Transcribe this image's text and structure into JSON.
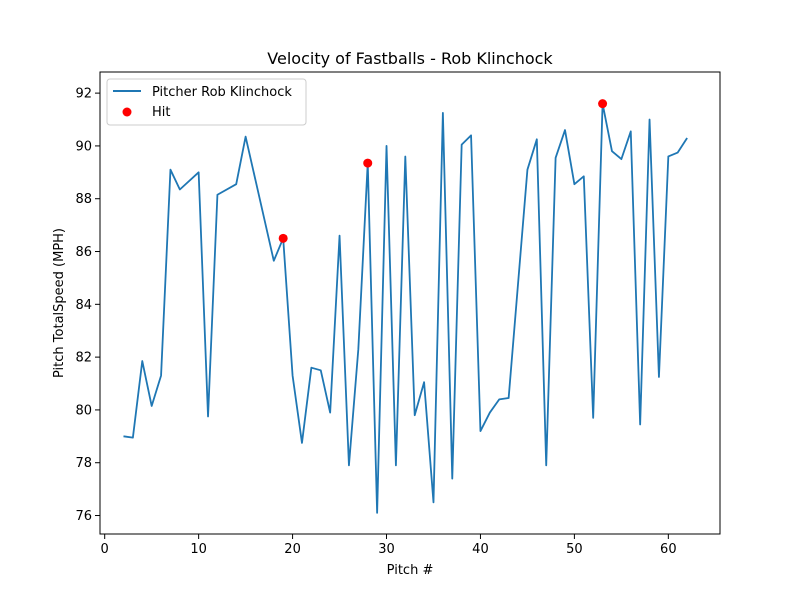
{
  "chart_data": {
    "type": "line",
    "title": "Velocity of Fastballs - Rob Klinchock",
    "xlabel": "Pitch #",
    "ylabel": "Pitch TotalSpeed (MPH)",
    "xlim": [
      -0.5,
      65.5
    ],
    "ylim": [
      75.3,
      92.8
    ],
    "xticks": [
      0,
      10,
      20,
      30,
      40,
      50,
      60
    ],
    "yticks": [
      76,
      78,
      80,
      82,
      84,
      86,
      88,
      90,
      92
    ],
    "grid": false,
    "legend_position": "upper-left",
    "series": [
      {
        "name": "Pitcher Rob Klinchock",
        "color": "#1f77b4",
        "x": [
          2,
          3,
          4,
          5,
          6,
          7,
          8,
          10,
          11,
          12,
          14,
          15,
          18,
          19,
          20,
          21,
          22,
          23,
          24,
          25,
          26,
          27,
          28,
          29,
          30,
          31,
          32,
          33,
          34,
          35,
          36,
          37,
          38,
          39,
          40,
          41,
          42,
          43,
          45,
          46,
          47,
          48,
          49,
          50,
          51,
          52,
          53,
          54,
          55,
          56,
          57,
          58,
          59,
          60,
          61,
          62
        ],
        "y": [
          79.0,
          78.95,
          81.85,
          80.15,
          81.3,
          89.1,
          88.35,
          89.0,
          79.75,
          88.15,
          88.55,
          90.35,
          85.65,
          86.5,
          81.3,
          78.75,
          81.6,
          81.5,
          79.9,
          86.6,
          77.9,
          82.3,
          89.35,
          76.1,
          90.0,
          77.9,
          89.6,
          79.8,
          81.05,
          76.5,
          91.25,
          77.4,
          90.05,
          90.4,
          79.2,
          79.9,
          80.4,
          80.45,
          89.1,
          90.25,
          77.9,
          89.55,
          90.6,
          88.55,
          88.85,
          79.7,
          91.6,
          89.8,
          89.5,
          90.55,
          79.45,
          91.0,
          81.25,
          89.6,
          89.75,
          90.3
        ]
      }
    ],
    "scatter": {
      "name": "Hit",
      "color": "#ff0000",
      "x": [
        19,
        28,
        53
      ],
      "y": [
        86.5,
        89.35,
        91.6
      ]
    }
  }
}
